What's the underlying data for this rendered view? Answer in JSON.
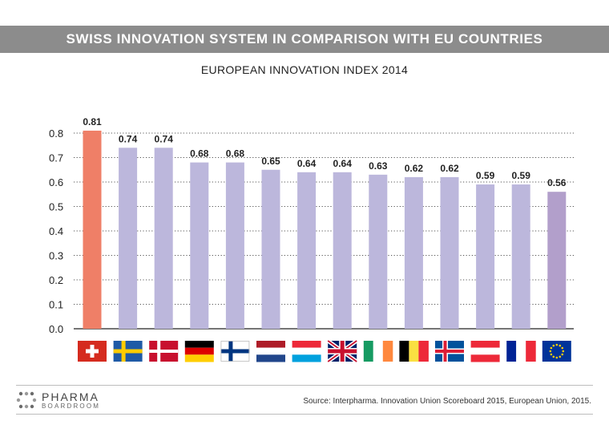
{
  "header": {
    "banner": "SWISS INNOVATION SYSTEM IN COMPARISON WITH EU COUNTRIES",
    "subtitle": "EUROPEAN INNOVATION INDEX 2014"
  },
  "chart_data": {
    "type": "bar",
    "title": "EUROPEAN INNOVATION INDEX 2014",
    "categories": [
      "Switzerland",
      "Sweden",
      "Denmark",
      "Germany",
      "Finland",
      "Netherlands",
      "Luxembourg",
      "United Kingdom",
      "Ireland",
      "Belgium",
      "Iceland",
      "Austria",
      "France",
      "European Union"
    ],
    "values": [
      0.81,
      0.74,
      0.74,
      0.68,
      0.68,
      0.65,
      0.64,
      0.64,
      0.63,
      0.62,
      0.62,
      0.59,
      0.59,
      0.56
    ],
    "value_labels": [
      "0.81",
      "0.74",
      "0.74",
      "0.68",
      "0.68",
      "0.65",
      "0.64",
      "0.64",
      "0.63",
      "0.62",
      "0.62",
      "0.59",
      "0.59",
      "0.56"
    ],
    "yticks": [
      "0.0",
      "0.1",
      "0.2",
      "0.3",
      "0.4",
      "0.5",
      "0.6",
      "0.7",
      "0.8"
    ],
    "ylim": [
      0,
      0.8
    ],
    "grid": true,
    "colors": {
      "highlight": "#ef7f67",
      "default": "#bcb7dc",
      "eu": "#b29fcb",
      "grid": "#555555",
      "axis": "#222222"
    },
    "bar_color_keys": [
      "highlight",
      "default",
      "default",
      "default",
      "default",
      "default",
      "default",
      "default",
      "default",
      "default",
      "default",
      "default",
      "default",
      "eu"
    ]
  },
  "footer": {
    "logo_top": "PHARMA",
    "logo_bottom": "BOARDROOM",
    "source": "Source: Interpharma. Innovation Union Scoreboard 2015, European Union, 2015."
  }
}
